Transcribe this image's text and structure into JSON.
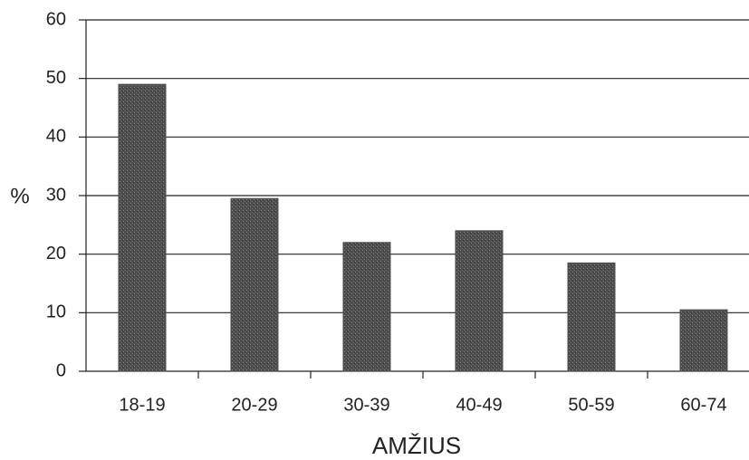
{
  "chart_data": {
    "type": "bar",
    "categories": [
      "18-19",
      "20-29",
      "30-39",
      "40-49",
      "50-59",
      "60-74"
    ],
    "values": [
      49,
      29.5,
      22,
      24,
      18.5,
      10.5
    ],
    "color": "#4d4d4d",
    "ylim": [
      0,
      60
    ],
    "yticks": [
      0,
      10,
      20,
      30,
      40,
      50,
      60
    ],
    "ylabel": "%",
    "xlabel": "AMŽIUS",
    "grid": true
  }
}
